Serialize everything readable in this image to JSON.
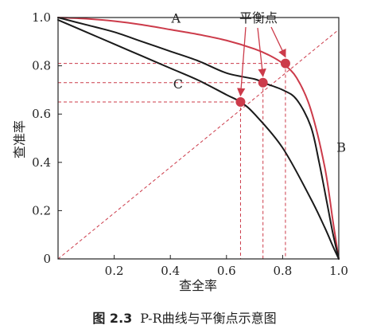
{
  "chart_data": {
    "type": "line",
    "xlabel": "查全率",
    "ylabel": "查准率",
    "xlim": [
      0,
      1
    ],
    "ylim": [
      0,
      1
    ],
    "x_ticks": [
      {
        "value": 0.2,
        "label": "0.2"
      },
      {
        "value": 0.4,
        "label": "0.4"
      },
      {
        "value": 0.6,
        "label": "0.6"
      },
      {
        "value": 0.8,
        "label": "0.8"
      },
      {
        "value": 1.0,
        "label": "1.0"
      }
    ],
    "y_ticks": [
      {
        "value": 0,
        "label": "0"
      },
      {
        "value": 0.2,
        "label": "0.2"
      },
      {
        "value": 0.4,
        "label": "0.4"
      },
      {
        "value": 0.6,
        "label": "0.6"
      },
      {
        "value": 0.8,
        "label": "0.8"
      },
      {
        "value": 1.0,
        "label": "1.0"
      }
    ],
    "series": [
      {
        "name": "A",
        "color": "#cc3b4a",
        "x": [
          0,
          0.1,
          0.2,
          0.3,
          0.4,
          0.5,
          0.6,
          0.7,
          0.75,
          0.8,
          0.85,
          0.9,
          0.95,
          0.98,
          1.0
        ],
        "y": [
          1.0,
          0.995,
          0.985,
          0.97,
          0.95,
          0.93,
          0.905,
          0.87,
          0.845,
          0.81,
          0.75,
          0.62,
          0.38,
          0.15,
          0.0
        ]
      },
      {
        "name": "B",
        "color": "#1a1a1a",
        "x": [
          0,
          0.1,
          0.2,
          0.3,
          0.4,
          0.5,
          0.6,
          0.7,
          0.73,
          0.8,
          0.85,
          0.9,
          0.93,
          0.96,
          0.98,
          1.0
        ],
        "y": [
          1.0,
          0.97,
          0.94,
          0.9,
          0.86,
          0.82,
          0.77,
          0.745,
          0.73,
          0.7,
          0.66,
          0.55,
          0.4,
          0.22,
          0.1,
          0.0
        ]
      },
      {
        "name": "C",
        "color": "#1a1a1a",
        "x": [
          0,
          0.1,
          0.2,
          0.3,
          0.4,
          0.5,
          0.6,
          0.65,
          0.7,
          0.8,
          0.9,
          0.95,
          0.98,
          1.0
        ],
        "y": [
          0.99,
          0.94,
          0.89,
          0.84,
          0.79,
          0.74,
          0.68,
          0.65,
          0.6,
          0.46,
          0.25,
          0.13,
          0.05,
          0.0
        ]
      }
    ],
    "diagonal": {
      "from": [
        0,
        0
      ],
      "to": [
        1.0,
        0.95
      ],
      "color": "#cc3b4a",
      "style": "dashed"
    },
    "break_even_points": [
      {
        "curve": "C",
        "x": 0.65,
        "y": 0.65
      },
      {
        "curve": "B",
        "x": 0.73,
        "y": 0.73
      },
      {
        "curve": "A",
        "x": 0.81,
        "y": 0.81
      }
    ],
    "annotation": "平衡点",
    "accent_color": "#cc3b4a",
    "grid": false,
    "legend": "none"
  },
  "caption": {
    "number": "图 2.3",
    "text": "P-R曲线与平衡点示意图"
  }
}
